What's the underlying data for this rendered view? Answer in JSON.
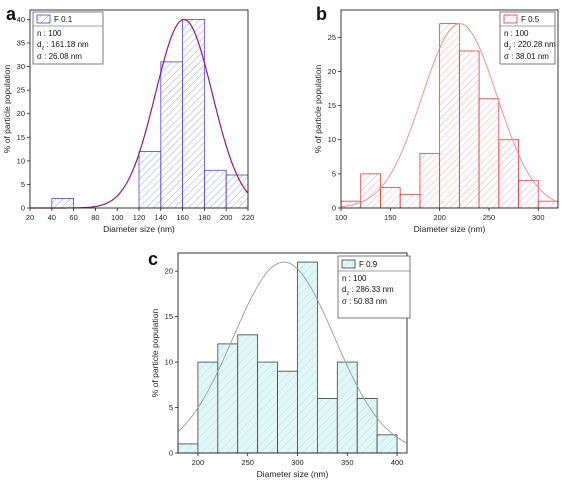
{
  "chart_data": [
    {
      "type": "bar",
      "panel_label": "a",
      "xlabel": "Diameter size (nm)",
      "ylabel": "% of particle population",
      "xlim": [
        20,
        220
      ],
      "ylim": [
        0,
        42
      ],
      "xticks": [
        20,
        40,
        60,
        80,
        100,
        120,
        140,
        160,
        180,
        200,
        220
      ],
      "yticks": [
        0,
        5,
        10,
        15,
        20,
        25,
        30,
        35,
        40
      ],
      "bin_width": 20,
      "bins": [
        {
          "start": 40,
          "value": 2
        },
        {
          "start": 120,
          "value": 12
        },
        {
          "start": 140,
          "value": 31
        },
        {
          "start": 160,
          "value": 40
        },
        {
          "start": 180,
          "value": 8
        },
        {
          "start": 200,
          "value": 7
        }
      ],
      "fit": {
        "mean": 161.18,
        "sigma": 26.08,
        "peak": 40
      },
      "legend": {
        "series": "F 0.1",
        "n": "n  : 100",
        "dz_symbol": "d",
        "dz_sub": "z",
        "dz": " : 161.18 nm",
        "sigma": "σ   : 26.08 nm"
      },
      "colors": {
        "bar_stroke": "#4a4ac8",
        "bar_fill": "#ffffff",
        "hatch": "#8a8ae0",
        "fit": "#8a1a8a"
      }
    },
    {
      "type": "bar",
      "panel_label": "b",
      "xlabel": "Diameter size (nm)",
      "ylabel": "% of particle population",
      "xlim": [
        100,
        320
      ],
      "ylim": [
        0,
        29
      ],
      "xticks": [
        100,
        150,
        200,
        250,
        300
      ],
      "yticks": [
        0,
        5,
        10,
        15,
        20,
        25
      ],
      "bin_width": 20,
      "bins": [
        {
          "start": 100,
          "value": 1
        },
        {
          "start": 120,
          "value": 5
        },
        {
          "start": 140,
          "value": 3
        },
        {
          "start": 160,
          "value": 2
        },
        {
          "start": 180,
          "value": 8
        },
        {
          "start": 200,
          "value": 27
        },
        {
          "start": 220,
          "value": 23
        },
        {
          "start": 240,
          "value": 16
        },
        {
          "start": 260,
          "value": 10
        },
        {
          "start": 280,
          "value": 4
        },
        {
          "start": 300,
          "value": 1
        }
      ],
      "fit": {
        "mean": 220.28,
        "sigma": 38.01,
        "peak": 27
      },
      "legend": {
        "series": "F 0.5",
        "n": "n  : 100",
        "dz_symbol": "d",
        "dz_sub": "z",
        "dz": " : 220.28 nm",
        "sigma": "σ   : 38.01 nm"
      },
      "colors": {
        "bar_stroke": "#d94040",
        "bar_fill": "#ffffff",
        "hatch": "#f0a0a0",
        "fit": "#f08a8a"
      }
    },
    {
      "type": "bar",
      "panel_label": "c",
      "xlabel": "Diameter size (nm)",
      "ylabel": "% of particle population",
      "xlim": [
        180,
        410
      ],
      "ylim": [
        0,
        22
      ],
      "xticks": [
        200,
        250,
        300,
        350,
        400
      ],
      "yticks": [
        0,
        5,
        10,
        15,
        20
      ],
      "bin_width": 20,
      "bins": [
        {
          "start": 180,
          "value": 1
        },
        {
          "start": 200,
          "value": 10
        },
        {
          "start": 220,
          "value": 12
        },
        {
          "start": 240,
          "value": 13
        },
        {
          "start": 260,
          "value": 10
        },
        {
          "start": 280,
          "value": 9
        },
        {
          "start": 300,
          "value": 21
        },
        {
          "start": 320,
          "value": 6
        },
        {
          "start": 340,
          "value": 10
        },
        {
          "start": 360,
          "value": 6
        },
        {
          "start": 380,
          "value": 2
        }
      ],
      "fit": {
        "mean": 286.33,
        "sigma": 50.83,
        "peak": 21
      },
      "legend": {
        "series": "F 0.9",
        "n": "n  : 100",
        "dz_symbol": "d",
        "dz_sub": "z",
        "dz": " : 286.33 nm",
        "sigma": "σ   : 50.83 nm"
      },
      "colors": {
        "bar_stroke": "#404040",
        "bar_fill": "#e0f7f7",
        "hatch": "#a8d8d8",
        "fit": "#9a9a9a"
      }
    }
  ]
}
